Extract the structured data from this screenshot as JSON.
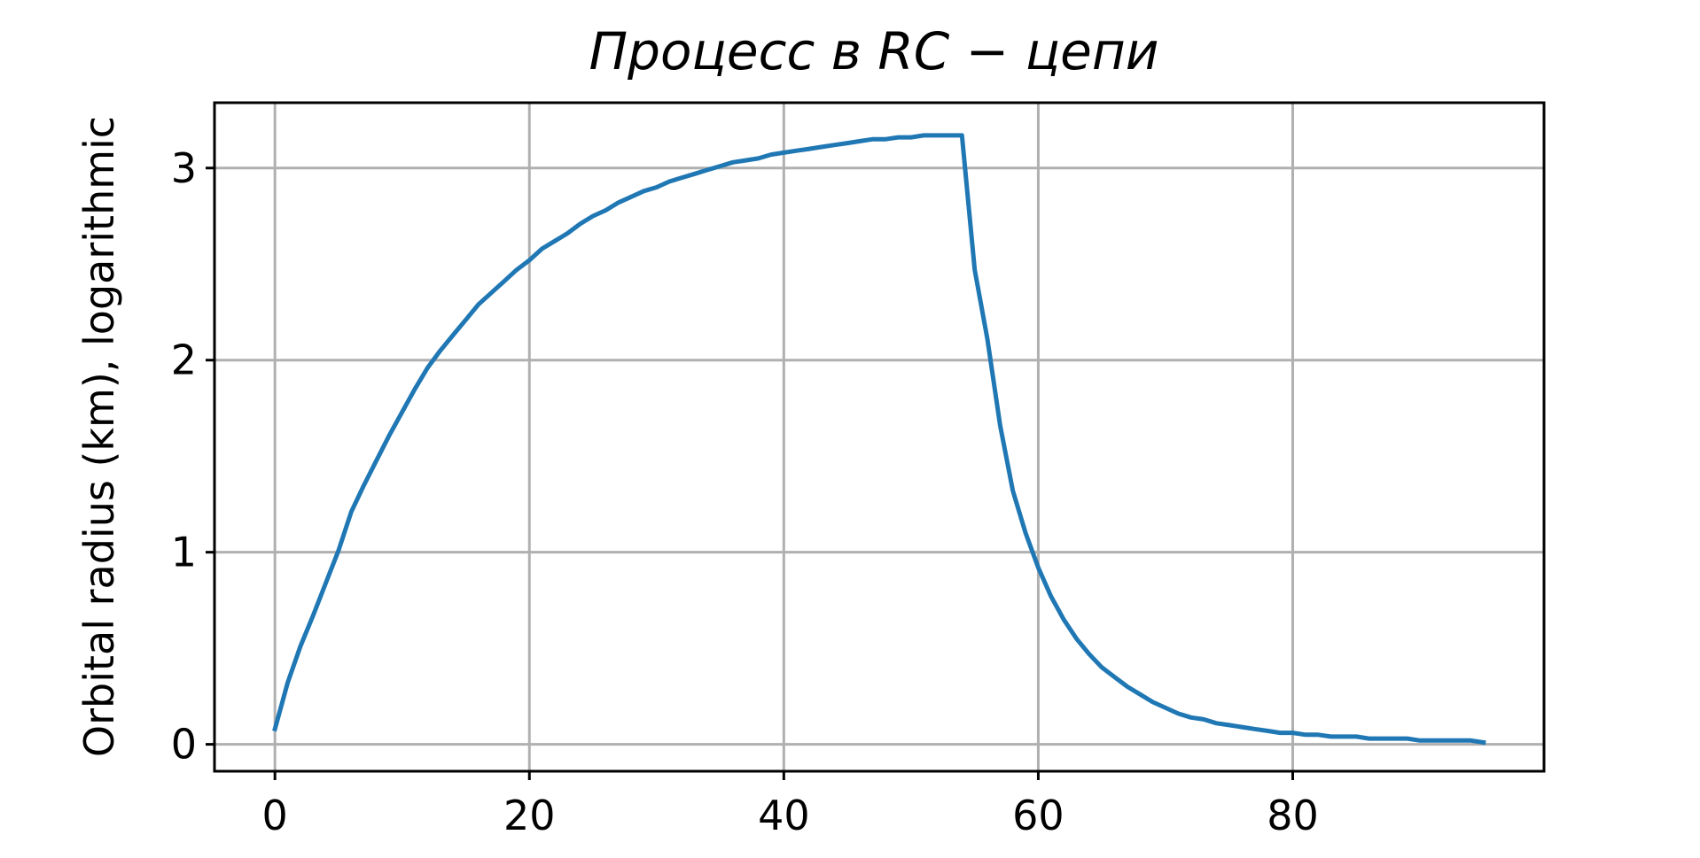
{
  "chart_data": {
    "type": "line",
    "title": "Процесс в RC − цепи",
    "xlabel": "",
    "ylabel": "Orbital radius (km), logarithmic",
    "xlim": [
      -4.75,
      99.75
    ],
    "ylim": [
      -0.14,
      3.34
    ],
    "xticks": [
      0,
      20,
      40,
      60,
      80
    ],
    "yticks": [
      0,
      1,
      2,
      3
    ],
    "grid": true,
    "legend": null,
    "series": [
      {
        "color": "#1f77b4",
        "x": [
          0,
          1,
          2,
          3,
          4,
          5,
          6,
          7,
          8,
          9,
          10,
          11,
          12,
          13,
          14,
          15,
          16,
          17,
          18,
          19,
          20,
          21,
          22,
          23,
          24,
          25,
          26,
          27,
          28,
          29,
          30,
          31,
          32,
          33,
          34,
          35,
          36,
          37,
          38,
          39,
          40,
          41,
          42,
          43,
          44,
          45,
          46,
          47,
          48,
          49,
          50,
          51,
          52,
          53,
          54,
          55,
          56,
          57,
          58,
          59,
          60,
          61,
          62,
          63,
          64,
          65,
          66,
          67,
          68,
          69,
          70,
          71,
          72,
          73,
          74,
          75,
          76,
          77,
          78,
          79,
          80,
          81,
          82,
          83,
          84,
          85,
          86,
          87,
          88,
          89,
          90,
          91,
          92,
          93,
          94,
          95
        ],
        "y": [
          0.08,
          0.32,
          0.51,
          0.67,
          0.84,
          1.01,
          1.21,
          1.35,
          1.48,
          1.61,
          1.73,
          1.85,
          1.96,
          2.05,
          2.13,
          2.21,
          2.29,
          2.35,
          2.41,
          2.47,
          2.52,
          2.58,
          2.62,
          2.66,
          2.71,
          2.75,
          2.78,
          2.82,
          2.85,
          2.88,
          2.9,
          2.93,
          2.95,
          2.97,
          2.99,
          3.01,
          3.03,
          3.04,
          3.05,
          3.07,
          3.08,
          3.09,
          3.1,
          3.11,
          3.12,
          3.13,
          3.14,
          3.15,
          3.15,
          3.16,
          3.16,
          3.17,
          3.17,
          3.17,
          3.17,
          2.47,
          2.11,
          1.66,
          1.32,
          1.1,
          0.92,
          0.77,
          0.65,
          0.55,
          0.47,
          0.4,
          0.35,
          0.3,
          0.26,
          0.22,
          0.19,
          0.16,
          0.14,
          0.13,
          0.11,
          0.1,
          0.09,
          0.08,
          0.07,
          0.06,
          0.06,
          0.05,
          0.05,
          0.04,
          0.04,
          0.04,
          0.03,
          0.03,
          0.03,
          0.03,
          0.02,
          0.02,
          0.02,
          0.02,
          0.02,
          0.01
        ]
      }
    ]
  }
}
